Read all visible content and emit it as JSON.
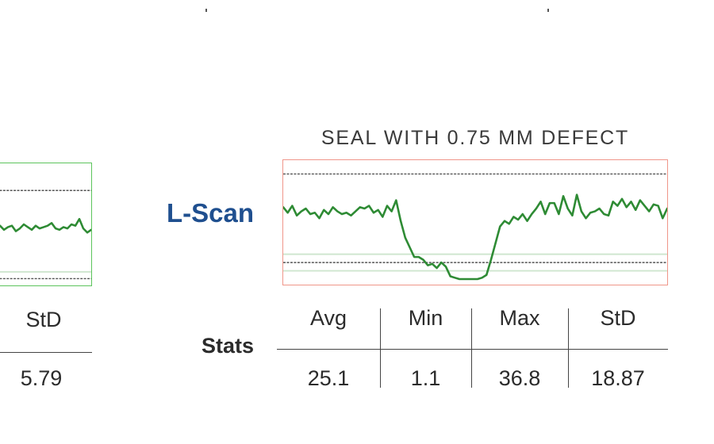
{
  "left_panel": {
    "std_header": "StD",
    "std_value": "5.79"
  },
  "main_panel": {
    "title": "SEAL WITH 0.75 MM DEFECT",
    "row_label": "L-Scan",
    "stats_label": "Stats",
    "stats": [
      {
        "header": "Avg",
        "value": "25.1"
      },
      {
        "header": "Min",
        "value": "1.1"
      },
      {
        "header": "Max",
        "value": "36.8"
      },
      {
        "header": "StD",
        "value": "18.87"
      }
    ]
  },
  "colors": {
    "trace": "#2e8b34",
    "main_frame": "#f0968a",
    "left_frame": "#5cc45c",
    "label_blue": "#1f4f8f",
    "reference_line": "#555555",
    "band_line": "#cfe6cf"
  },
  "chart_data": [
    {
      "type": "line",
      "title": "SEAL WITH 0.75 MM DEFECT",
      "y": [
        26,
        22,
        27,
        20,
        23,
        25,
        21,
        22,
        18,
        24,
        21,
        26,
        23,
        21,
        22,
        20,
        23,
        26,
        25,
        27,
        22,
        24,
        19,
        27,
        23,
        31,
        16,
        4,
        -3,
        -10,
        -10,
        -12,
        -16,
        -15,
        -18,
        -14,
        -17,
        -24,
        -25,
        -26,
        -26,
        -26,
        -26,
        -26,
        -25,
        -23,
        -12,
        0,
        12,
        16,
        14,
        19,
        17,
        21,
        16,
        21,
        25,
        30,
        21,
        29,
        29,
        21,
        34,
        25,
        20,
        35,
        23,
        18,
        22,
        23,
        25,
        21,
        20,
        30,
        27,
        32,
        26,
        30,
        24,
        31,
        27,
        23,
        28,
        27,
        18,
        25
      ],
      "ylim": [
        -30,
        60
      ]
    },
    {
      "type": "line",
      "y": [
        12,
        14,
        11,
        13,
        14,
        10,
        12,
        15,
        13,
        11,
        14,
        12,
        13,
        14,
        16,
        12,
        11,
        13,
        12,
        15,
        14,
        19,
        12,
        9,
        11
      ],
      "ylim": [
        -30,
        60
      ]
    }
  ]
}
